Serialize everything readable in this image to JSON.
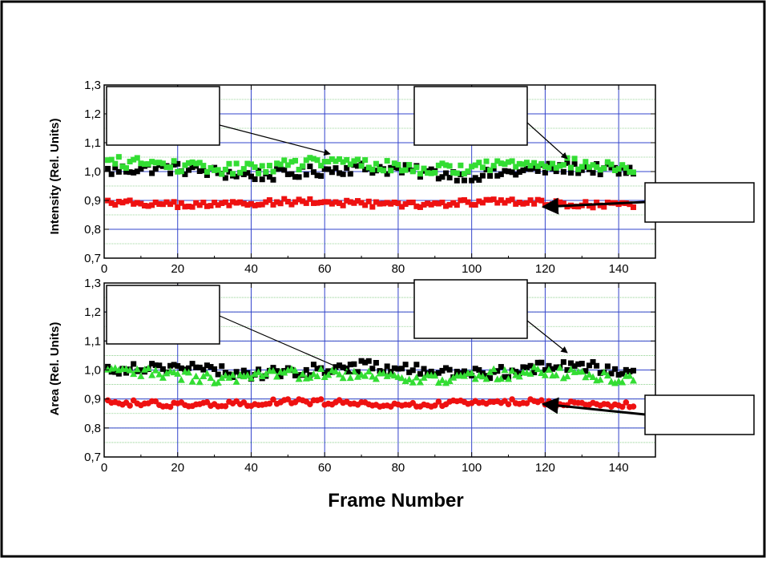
{
  "chart_data": [
    {
      "type": "scatter",
      "title": "",
      "ylabel": "Intensity (Rel. Units)",
      "xlabel": "",
      "xlim": [
        0,
        150
      ],
      "ylim": [
        0.7,
        1.3
      ],
      "x_ticks": [
        "0",
        "20",
        "40",
        "60",
        "80",
        "100",
        "120",
        "140"
      ],
      "y_ticks": [
        "0,7",
        "0,8",
        "0,9",
        "1,0",
        "1,1",
        "1,2",
        "1,3"
      ],
      "grid": true,
      "colors": [
        "#000000",
        "#33dd33",
        "#ee1111"
      ],
      "series": [
        {
          "marker": "square",
          "color": "#000000",
          "x_range": [
            1,
            144
          ],
          "level": 1.0,
          "spread": 0.02
        },
        {
          "marker": "square",
          "color": "#33dd33",
          "x_range": [
            1,
            144
          ],
          "level": 1.02,
          "spread": 0.02
        },
        {
          "marker": "square",
          "color": "#ee1111",
          "x_range": [
            1,
            144
          ],
          "level": 0.89,
          "spread": 0.01
        }
      ]
    },
    {
      "type": "scatter",
      "title": "",
      "ylabel": "Area (Rel. Units)",
      "xlabel": "Frame Number",
      "xlim": [
        0,
        150
      ],
      "ylim": [
        0.7,
        1.3
      ],
      "x_ticks": [
        "0",
        "20",
        "40",
        "60",
        "80",
        "100",
        "120",
        "140"
      ],
      "y_ticks": [
        "0,7",
        "0,8",
        "0,9",
        "1,0",
        "1,1",
        "1,2",
        "1,3"
      ],
      "grid": true,
      "colors": [
        "#000000",
        "#33dd33",
        "#ee1111"
      ],
      "series": [
        {
          "marker": "square",
          "color": "#000000",
          "x_range": [
            1,
            144
          ],
          "level": 1.0,
          "spread": 0.02
        },
        {
          "marker": "triangle",
          "color": "#33dd33",
          "x_range": [
            1,
            144
          ],
          "level": 0.98,
          "spread": 0.02
        },
        {
          "marker": "circle",
          "color": "#ee1111",
          "x_range": [
            1,
            144
          ],
          "level": 0.885,
          "spread": 0.01
        }
      ]
    }
  ]
}
